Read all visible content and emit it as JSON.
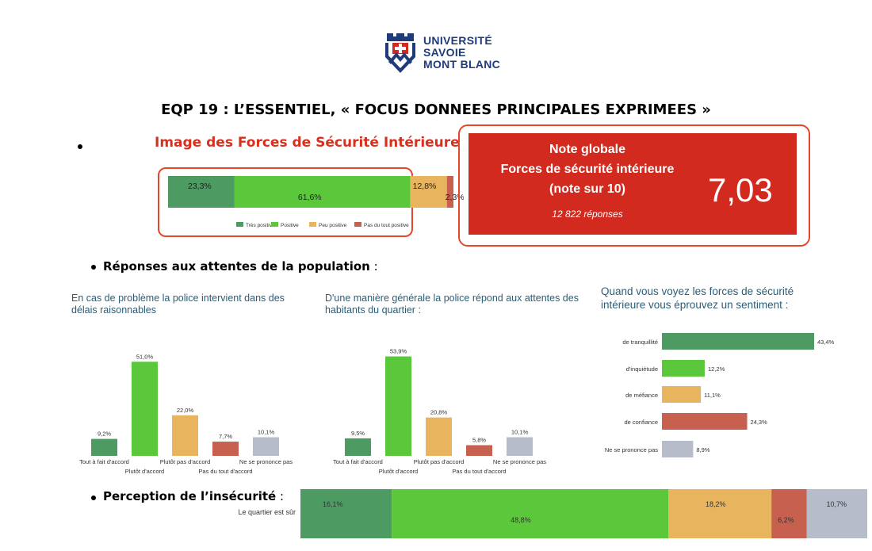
{
  "header": {
    "logo_lines": [
      "UNIVERSITÉ",
      "SAVOIE",
      "MONT BLANC"
    ],
    "title": "EQP 19 : L’ESSENTIEL, « FOCUS DONNEES PRINCIPALES EXPRIMEES »"
  },
  "fsi": {
    "title": "Image des Forces de Sécurité Intérieure"
  },
  "note": {
    "line1": "Note globale",
    "line2": "Forces de sécurité intérieure",
    "line3": "(note sur 10)",
    "responses": "12 822 réponses",
    "value": "7,03"
  },
  "sections": {
    "attentes_bold": "Réponses aux attentes de la population",
    "attentes_rest": " :",
    "insecurite_bold": "Perception de l’insécurité",
    "insecurite_rest": " :"
  },
  "chart_data": [
    {
      "type": "bar",
      "orientation": "horizontal-stacked",
      "series": [
        {
          "name": "Très positive",
          "values": [
            23.3
          ],
          "color": "#4e9a63"
        },
        {
          "name": "Positive",
          "values": [
            61.6
          ],
          "color": "#5bc83b"
        },
        {
          "name": "Peu positive",
          "values": [
            12.8
          ],
          "color": "#e8b45e"
        },
        {
          "name": "Pas du tout positive",
          "values": [
            2.3
          ],
          "color": "#c8604f"
        }
      ],
      "value_labels": [
        "23,3%",
        "61,6%",
        "12,8%",
        "2,3%"
      ],
      "legend": "bottom"
    },
    {
      "type": "bar",
      "title": "En cas de problème la police intervient dans des délais raisonnables",
      "categories": [
        "Tout à fait d'accord",
        "Plutôt d'accord",
        "Plutôt pas d'accord",
        "Pas du tout d'accord",
        "Ne se prononce pas"
      ],
      "values": [
        9.2,
        51.0,
        22.0,
        7.7,
        10.1
      ],
      "value_labels": [
        "9,2%",
        "51,0%",
        "22,0%",
        "7,7%",
        "10,1%"
      ],
      "colors": [
        "#4e9a63",
        "#5bc83b",
        "#e8b45e",
        "#c8604f",
        "#b7bccb"
      ]
    },
    {
      "type": "bar",
      "title": "D'une manière générale la police répond aux attentes des habitants du quartier :",
      "categories": [
        "Tout à fait d'accord",
        "Plutôt d'accord",
        "Plutôt pas d'accord",
        "Pas du tout d'accord",
        "Ne se prononce pas"
      ],
      "values": [
        9.5,
        53.9,
        20.8,
        5.8,
        10.1
      ],
      "value_labels": [
        "9,5%",
        "53,9%",
        "20,8%",
        "5,8%",
        "10,1%"
      ],
      "colors": [
        "#4e9a63",
        "#5bc83b",
        "#e8b45e",
        "#c8604f",
        "#b7bccb"
      ]
    },
    {
      "type": "bar",
      "orientation": "horizontal",
      "title": "Quand vous voyez les forces de sécurité intérieure vous éprouvez un sentiment :",
      "categories": [
        "de tranquillité",
        "d'inquiétude",
        "de méfiance",
        "de confiance",
        "Ne se prononce pas"
      ],
      "values": [
        43.4,
        12.2,
        11.1,
        24.3,
        8.9
      ],
      "value_labels": [
        "43,4%",
        "12,2%",
        "11,1%",
        "24,3%",
        "8,9%"
      ],
      "colors": [
        "#4e9a63",
        "#5bc83b",
        "#e8b45e",
        "#c8604f",
        "#b7bccb"
      ]
    },
    {
      "type": "bar",
      "orientation": "horizontal-stacked",
      "categories": [
        "Le quartier est sûr"
      ],
      "series": [
        {
          "values": [
            16.1
          ],
          "color": "#4e9a63"
        },
        {
          "values": [
            48.8
          ],
          "color": "#5bc83b"
        },
        {
          "values": [
            18.2
          ],
          "color": "#e8b45e"
        },
        {
          "values": [
            6.2
          ],
          "color": "#c8604f"
        },
        {
          "values": [
            10.7
          ],
          "color": "#b7bccb"
        }
      ],
      "value_labels": [
        "16,1%",
        "48,8%",
        "18,2%",
        "6,2%",
        "10,7%"
      ]
    }
  ]
}
